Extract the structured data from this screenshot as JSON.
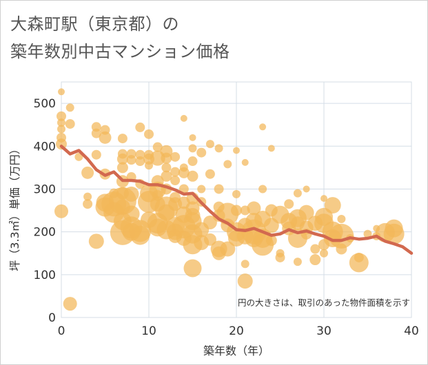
{
  "title_line1": "大森町駅（東京都）の",
  "title_line2": "築年数別中古マンション価格",
  "chart_data": {
    "type": "scatter",
    "title": "大森町駅（東京都）の築年数別中古マンション価格",
    "xlabel": "築年数（年）",
    "ylabel": "坪（3.3㎡）単価（万円）",
    "xlim": [
      0,
      40
    ],
    "ylim": [
      0,
      550
    ],
    "xticks": [
      "0",
      "10",
      "20",
      "30",
      "40"
    ],
    "yticks": [
      "0",
      "100",
      "200",
      "300",
      "400",
      "500"
    ],
    "grid": true,
    "note": "円の大きさは、取引のあった物件面積を示す",
    "colors": {
      "bubble": "#f3b759",
      "trend": "#d2694f"
    },
    "series": [
      {
        "type": "bubble",
        "points": [
          [
            0,
            527,
            5
          ],
          [
            0,
            470,
            7
          ],
          [
            0,
            455,
            6
          ],
          [
            0,
            440,
            6
          ],
          [
            0,
            420,
            7
          ],
          [
            0,
            405,
            8
          ],
          [
            0,
            248,
            10
          ],
          [
            1,
            490,
            6
          ],
          [
            1,
            452,
            7
          ],
          [
            1,
            32,
            10
          ],
          [
            2,
            375,
            6
          ],
          [
            3,
            338,
            9
          ],
          [
            3,
            282,
            6
          ],
          [
            3,
            265,
            7
          ],
          [
            4,
            445,
            7
          ],
          [
            4,
            430,
            7
          ],
          [
            4,
            380,
            7
          ],
          [
            4,
            178,
            11
          ],
          [
            5,
            438,
            7
          ],
          [
            5,
            420,
            9
          ],
          [
            5,
            335,
            8
          ],
          [
            5,
            268,
            13
          ],
          [
            5,
            258,
            14
          ],
          [
            6,
            290,
            7
          ],
          [
            6,
            265,
            18
          ],
          [
            6,
            245,
            15
          ],
          [
            7,
            418,
            7
          ],
          [
            7,
            382,
            7
          ],
          [
            7,
            370,
            8
          ],
          [
            7,
            350,
            8
          ],
          [
            7,
            318,
            9
          ],
          [
            7,
            290,
            9
          ],
          [
            7,
            272,
            20
          ],
          [
            7,
            258,
            11
          ],
          [
            7,
            225,
            13
          ],
          [
            7,
            198,
            18
          ],
          [
            8,
            382,
            7
          ],
          [
            8,
            368,
            7
          ],
          [
            8,
            328,
            7
          ],
          [
            8,
            288,
            11
          ],
          [
            8,
            242,
            12
          ],
          [
            8,
            210,
            16
          ],
          [
            8,
            200,
            13
          ],
          [
            9,
            444,
            7
          ],
          [
            9,
            380,
            7
          ],
          [
            9,
            365,
            7
          ],
          [
            9,
            312,
            7
          ],
          [
            9,
            202,
            16
          ],
          [
            9,
            192,
            14
          ],
          [
            10,
            428,
            7
          ],
          [
            10,
            380,
            7
          ],
          [
            10,
            370,
            8
          ],
          [
            10,
            355,
            6
          ],
          [
            10,
            290,
            13
          ],
          [
            10,
            270,
            16
          ],
          [
            10,
            228,
            12
          ],
          [
            11,
            398,
            7
          ],
          [
            11,
            372,
            11
          ],
          [
            11,
            318,
            9
          ],
          [
            11,
            298,
            12
          ],
          [
            11,
            285,
            8
          ],
          [
            11,
            265,
            11
          ],
          [
            11,
            220,
            15
          ],
          [
            11,
            210,
            13
          ],
          [
            12,
            388,
            9
          ],
          [
            12,
            372,
            8
          ],
          [
            12,
            350,
            7
          ],
          [
            12,
            330,
            8
          ],
          [
            12,
            300,
            8
          ],
          [
            12,
            255,
            17
          ],
          [
            12,
            245,
            12
          ],
          [
            12,
            205,
            14
          ],
          [
            13,
            375,
            7
          ],
          [
            13,
            340,
            7
          ],
          [
            13,
            320,
            7
          ],
          [
            13,
            280,
            8
          ],
          [
            13,
            265,
            10
          ],
          [
            13,
            212,
            14
          ],
          [
            13,
            200,
            12
          ],
          [
            13,
            190,
            10
          ],
          [
            14,
            465,
            5
          ],
          [
            14,
            350,
            6
          ],
          [
            14,
            338,
            8
          ],
          [
            14,
            300,
            7
          ],
          [
            14,
            268,
            9
          ],
          [
            14,
            240,
            12
          ],
          [
            14,
            212,
            17
          ],
          [
            14,
            185,
            11
          ],
          [
            15,
            420,
            5
          ],
          [
            15,
            395,
            6
          ],
          [
            15,
            365,
            7
          ],
          [
            15,
            330,
            8
          ],
          [
            15,
            278,
            9
          ],
          [
            15,
            255,
            10
          ],
          [
            15,
            238,
            11
          ],
          [
            15,
            225,
            13
          ],
          [
            15,
            195,
            14
          ],
          [
            15,
            170,
            14
          ],
          [
            15,
            115,
            13
          ],
          [
            16,
            385,
            7
          ],
          [
            16,
            300,
            6
          ],
          [
            16,
            270,
            7
          ],
          [
            16,
            205,
            11
          ],
          [
            16,
            175,
            11
          ],
          [
            17,
            405,
            6
          ],
          [
            17,
            335,
            7
          ],
          [
            17,
            222,
            10
          ],
          [
            17,
            182,
            9
          ],
          [
            18,
            395,
            6
          ],
          [
            18,
            300,
            7
          ],
          [
            18,
            258,
            8
          ],
          [
            18,
            238,
            9
          ],
          [
            18,
            160,
            12
          ],
          [
            18,
            150,
            10
          ],
          [
            19,
            358,
            6
          ],
          [
            19,
            242,
            16
          ],
          [
            19,
            215,
            10
          ],
          [
            19,
            160,
            11
          ],
          [
            20,
            390,
            5
          ],
          [
            20,
            288,
            6
          ],
          [
            20,
            250,
            8
          ],
          [
            20,
            200,
            14
          ],
          [
            20,
            185,
            12
          ],
          [
            21,
            362,
            5
          ],
          [
            21,
            250,
            7
          ],
          [
            21,
            215,
            11
          ],
          [
            21,
            190,
            12
          ],
          [
            21,
            125,
            6
          ],
          [
            21,
            85,
            11
          ],
          [
            22,
            255,
            10
          ],
          [
            22,
            225,
            12
          ],
          [
            22,
            200,
            18
          ],
          [
            22,
            185,
            13
          ],
          [
            23,
            445,
            5
          ],
          [
            23,
            300,
            6
          ],
          [
            23,
            230,
            12
          ],
          [
            23,
            185,
            14
          ],
          [
            23,
            170,
            16
          ],
          [
            24,
            395,
            5
          ],
          [
            24,
            250,
            9
          ],
          [
            24,
            215,
            11
          ],
          [
            24,
            180,
            8
          ],
          [
            25,
            240,
            13
          ],
          [
            25,
            150,
            6
          ],
          [
            25,
            140,
            7
          ],
          [
            26,
            265,
            7
          ],
          [
            26,
            225,
            12
          ],
          [
            26,
            208,
            10
          ],
          [
            27,
            290,
            6
          ],
          [
            27,
            232,
            13
          ],
          [
            27,
            220,
            10
          ],
          [
            27,
            185,
            14
          ],
          [
            27,
            130,
            6
          ],
          [
            28,
            300,
            5
          ],
          [
            28,
            245,
            11
          ],
          [
            28,
            210,
            10
          ],
          [
            28,
            195,
            8
          ],
          [
            29,
            220,
            11
          ],
          [
            29,
            160,
            7
          ],
          [
            29,
            135,
            8
          ],
          [
            30,
            278,
            5
          ],
          [
            30,
            235,
            13
          ],
          [
            30,
            220,
            14
          ],
          [
            30,
            170,
            8
          ],
          [
            30,
            150,
            6
          ],
          [
            31,
            262,
            12
          ],
          [
            31,
            200,
            15
          ],
          [
            31,
            185,
            13
          ],
          [
            32,
            230,
            6
          ],
          [
            32,
            190,
            18
          ],
          [
            32,
            160,
            8
          ],
          [
            33,
            185,
            6
          ],
          [
            34,
            140,
            7
          ],
          [
            34,
            128,
            14
          ],
          [
            35,
            195,
            6
          ],
          [
            36,
            208,
            5
          ],
          [
            36,
            190,
            6
          ],
          [
            37,
            198,
            14
          ],
          [
            38,
            195,
            15
          ],
          [
            38,
            208,
            13
          ]
        ]
      },
      {
        "type": "line",
        "points": [
          [
            0,
            400
          ],
          [
            1,
            382
          ],
          [
            2,
            390
          ],
          [
            3,
            370
          ],
          [
            4,
            345
          ],
          [
            5,
            332
          ],
          [
            6,
            340
          ],
          [
            7,
            320
          ],
          [
            8,
            320
          ],
          [
            9,
            318
          ],
          [
            10,
            310
          ],
          [
            11,
            310
          ],
          [
            12,
            305
          ],
          [
            13,
            298
          ],
          [
            14,
            288
          ],
          [
            15,
            290
          ],
          [
            16,
            268
          ],
          [
            17,
            248
          ],
          [
            18,
            230
          ],
          [
            19,
            220
          ],
          [
            20,
            205
          ],
          [
            21,
            203
          ],
          [
            22,
            208
          ],
          [
            23,
            200
          ],
          [
            24,
            192
          ],
          [
            25,
            195
          ],
          [
            26,
            205
          ],
          [
            27,
            198
          ],
          [
            28,
            202
          ],
          [
            29,
            195
          ],
          [
            30,
            190
          ],
          [
            31,
            180
          ],
          [
            32,
            180
          ],
          [
            33,
            186
          ],
          [
            34,
            183
          ],
          [
            35,
            185
          ],
          [
            36,
            190
          ],
          [
            37,
            178
          ],
          [
            38,
            172
          ],
          [
            39,
            165
          ],
          [
            40,
            150
          ]
        ]
      }
    ]
  }
}
